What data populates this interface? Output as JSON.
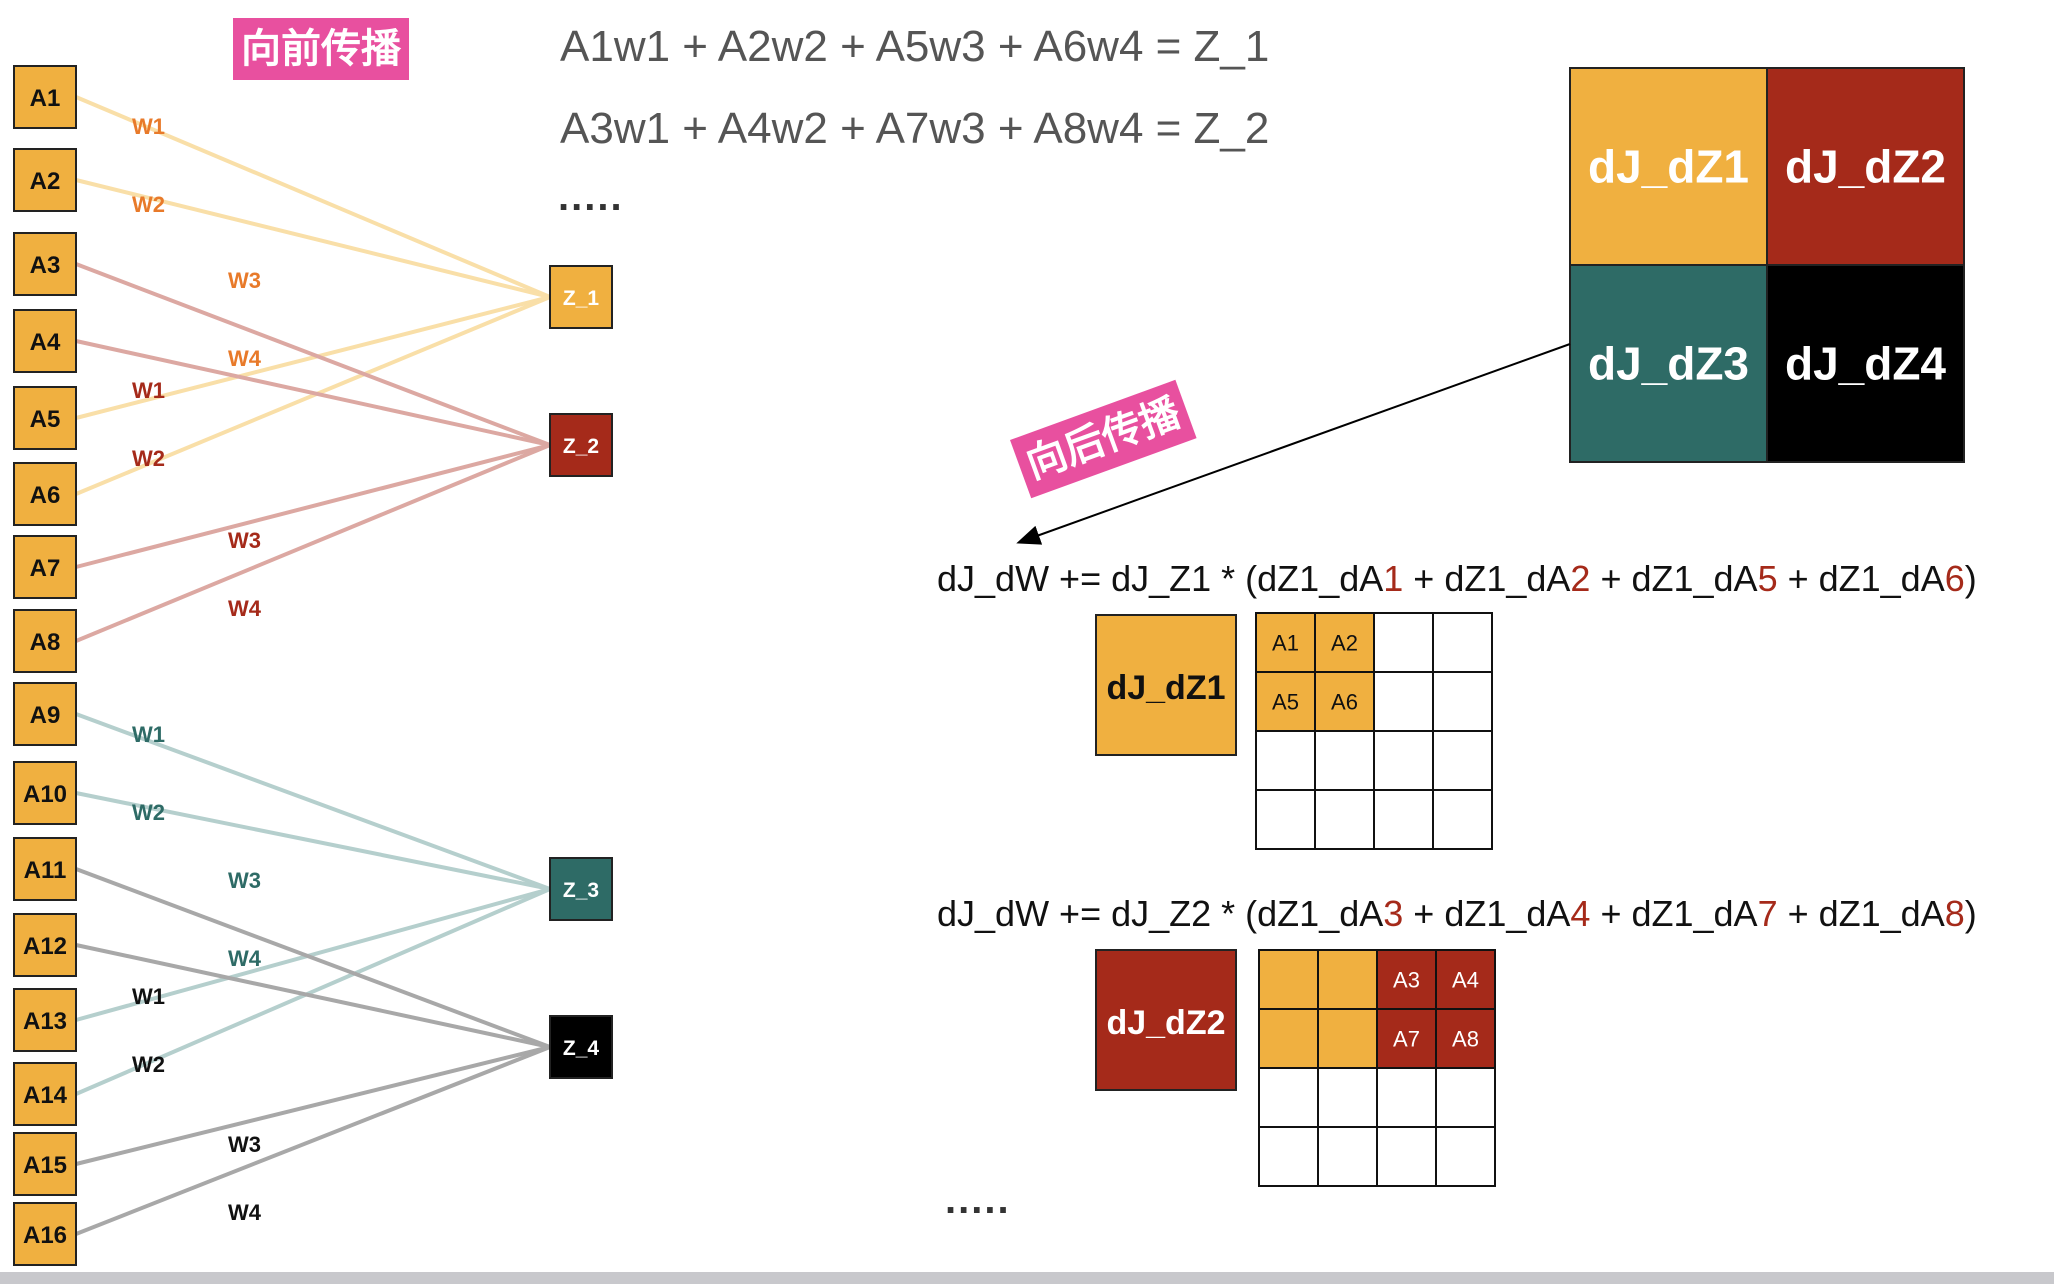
{
  "forward": {
    "badge": "向前传播",
    "equations": [
      "A1w1 + A2w2 + A5w3 + A6w4 = Z_1",
      "A3w1 + A4w2 + A7w3 + A8w4 = Z_2"
    ],
    "ellipsis": "....."
  },
  "inputs": [
    "A1",
    "A2",
    "A3",
    "A4",
    "A5",
    "A6",
    "A7",
    "A8",
    "A9",
    "A10",
    "A11",
    "A12",
    "A13",
    "A14",
    "A15",
    "A16"
  ],
  "outputs": [
    {
      "label": "Z_1",
      "color": "#f0b040",
      "text_color": "#ffffff"
    },
    {
      "label": "Z_2",
      "color": "#a52a1a",
      "text_color": "#ffffff"
    },
    {
      "label": "Z_3",
      "color": "#2e6b66",
      "text_color": "#ffffff"
    },
    {
      "label": "Z_4",
      "color": "#000000",
      "text_color": "#ffffff"
    }
  ],
  "connections": [
    {
      "from": "A1",
      "to": "Z_1",
      "weight": "W1"
    },
    {
      "from": "A2",
      "to": "Z_1",
      "weight": "W2"
    },
    {
      "from": "A5",
      "to": "Z_1",
      "weight": "W3"
    },
    {
      "from": "A6",
      "to": "Z_1",
      "weight": "W4"
    },
    {
      "from": "A3",
      "to": "Z_2",
      "weight": "W1"
    },
    {
      "from": "A4",
      "to": "Z_2",
      "weight": "W2"
    },
    {
      "from": "A7",
      "to": "Z_2",
      "weight": "W3"
    },
    {
      "from": "A8",
      "to": "Z_2",
      "weight": "W4"
    },
    {
      "from": "A9",
      "to": "Z_3",
      "weight": "W1"
    },
    {
      "from": "A10",
      "to": "Z_3",
      "weight": "W2"
    },
    {
      "from": "A13",
      "to": "Z_3",
      "weight": "W3"
    },
    {
      "from": "A14",
      "to": "Z_3",
      "weight": "W4"
    },
    {
      "from": "A11",
      "to": "Z_4",
      "weight": "W1"
    },
    {
      "from": "A12",
      "to": "Z_4",
      "weight": "W2"
    },
    {
      "from": "A15",
      "to": "Z_4",
      "weight": "W3"
    },
    {
      "from": "A16",
      "to": "Z_4",
      "weight": "W4"
    }
  ],
  "group_colors": {
    "Z_1": {
      "line": "#f9dfa8",
      "label": "#e87a2a"
    },
    "Z_2": {
      "line": "#dca8a2",
      "label": "#a52a1a"
    },
    "Z_3": {
      "line": "#b5cfcd",
      "label": "#2e6b66"
    },
    "Z_4": {
      "line": "#a8a8a8",
      "label": "#111111"
    }
  },
  "gradient_grid": [
    {
      "label": "dJ_dZ1",
      "color": "#f0b040"
    },
    {
      "label": "dJ_dZ2",
      "color": "#a52a1a"
    },
    {
      "label": "dJ_dZ3",
      "color": "#2e6b66"
    },
    {
      "label": "dJ_dZ4",
      "color": "#000000"
    }
  ],
  "backward": {
    "badge": "向后传播",
    "ellipsis": "....."
  },
  "formulas": [
    {
      "prefix": "dJ_dW += dJ_Z1 * (",
      "terms": [
        {
          "base": "dZ1_dA",
          "idx": "1"
        },
        {
          "base": "dZ1_dA",
          "idx": "2"
        },
        {
          "base": "dZ1_dA",
          "idx": "5"
        },
        {
          "base": "dZ1_dA",
          "idx": "6"
        }
      ],
      "joiner": " + ",
      "suffix": ")",
      "block_label": "dJ_dZ1",
      "block_color": "#f0b040",
      "cells": [
        {
          "label": "A1",
          "fill": "#f0b040",
          "text_color": "#111111"
        },
        {
          "label": "A2",
          "fill": "#f0b040",
          "text_color": "#111111"
        },
        {
          "label": "",
          "fill": "#ffffff",
          "text_color": "#111111"
        },
        {
          "label": "",
          "fill": "#ffffff",
          "text_color": "#111111"
        },
        {
          "label": "A5",
          "fill": "#f0b040",
          "text_color": "#111111"
        },
        {
          "label": "A6",
          "fill": "#f0b040",
          "text_color": "#111111"
        },
        {
          "label": "",
          "fill": "#ffffff",
          "text_color": "#111111"
        },
        {
          "label": "",
          "fill": "#ffffff",
          "text_color": "#111111"
        },
        {
          "label": "",
          "fill": "#ffffff",
          "text_color": "#111111"
        },
        {
          "label": "",
          "fill": "#ffffff",
          "text_color": "#111111"
        },
        {
          "label": "",
          "fill": "#ffffff",
          "text_color": "#111111"
        },
        {
          "label": "",
          "fill": "#ffffff",
          "text_color": "#111111"
        },
        {
          "label": "",
          "fill": "#ffffff",
          "text_color": "#111111"
        },
        {
          "label": "",
          "fill": "#ffffff",
          "text_color": "#111111"
        },
        {
          "label": "",
          "fill": "#ffffff",
          "text_color": "#111111"
        },
        {
          "label": "",
          "fill": "#ffffff",
          "text_color": "#111111"
        }
      ]
    },
    {
      "prefix": "dJ_dW += dJ_Z2 * (",
      "terms": [
        {
          "base": "dZ1_dA",
          "idx": "3"
        },
        {
          "base": "dZ1_dA",
          "idx": "4"
        },
        {
          "base": "dZ1_dA",
          "idx": "7"
        },
        {
          "base": "dZ1_dA",
          "idx": "8"
        }
      ],
      "joiner": " + ",
      "suffix": ")",
      "block_label": "dJ_dZ2",
      "block_color": "#a52a1a",
      "cells": [
        {
          "label": "",
          "fill": "#f0b040",
          "text_color": "#ffffff"
        },
        {
          "label": "",
          "fill": "#f0b040",
          "text_color": "#ffffff"
        },
        {
          "label": "A3",
          "fill": "#a52a1a",
          "text_color": "#ffffff"
        },
        {
          "label": "A4",
          "fill": "#a52a1a",
          "text_color": "#ffffff"
        },
        {
          "label": "",
          "fill": "#f0b040",
          "text_color": "#ffffff"
        },
        {
          "label": "",
          "fill": "#f0b040",
          "text_color": "#ffffff"
        },
        {
          "label": "A7",
          "fill": "#a52a1a",
          "text_color": "#ffffff"
        },
        {
          "label": "A8",
          "fill": "#a52a1a",
          "text_color": "#ffffff"
        },
        {
          "label": "",
          "fill": "#ffffff",
          "text_color": "#111111"
        },
        {
          "label": "",
          "fill": "#ffffff",
          "text_color": "#111111"
        },
        {
          "label": "",
          "fill": "#ffffff",
          "text_color": "#111111"
        },
        {
          "label": "",
          "fill": "#ffffff",
          "text_color": "#111111"
        },
        {
          "label": "",
          "fill": "#ffffff",
          "text_color": "#111111"
        },
        {
          "label": "",
          "fill": "#ffffff",
          "text_color": "#111111"
        },
        {
          "label": "",
          "fill": "#ffffff",
          "text_color": "#111111"
        },
        {
          "label": "",
          "fill": "#ffffff",
          "text_color": "#111111"
        }
      ]
    }
  ],
  "colors": {
    "input_fill": "#f0b040",
    "badge": "#e8509f",
    "highlight": "#a52a1a"
  }
}
